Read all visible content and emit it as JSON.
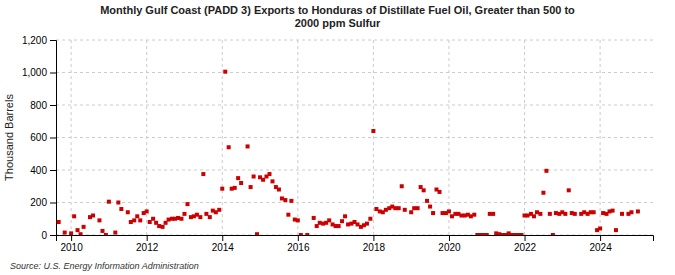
{
  "chart_data": {
    "type": "scatter",
    "title": "Monthly Gulf Coast (PADD 3) Exports to Honduras of Distillate Fuel Oil, Greater than 500 to\n2000 ppm Sulfur",
    "ylabel": "Thousand Barrels",
    "annotations": [
      "Source: U.S. Energy Information Administration"
    ],
    "color": "#cc0000",
    "marker": "square",
    "grid": true,
    "xlim": [
      2009.6,
      2025.4
    ],
    "xticks": [
      2010,
      2012,
      2014,
      2016,
      2018,
      2020,
      2022,
      2024
    ],
    "ylim": [
      0,
      1200
    ],
    "yticks": [
      0,
      200,
      400,
      600,
      800,
      {
        "value": 1000,
        "label": "1,000"
      },
      {
        "value": 1200,
        "label": "1,200"
      }
    ],
    "x": [
      2009.67,
      2009.83,
      2010.0,
      2010.08,
      2010.17,
      2010.25,
      2010.33,
      2010.5,
      2010.58,
      2010.75,
      2010.83,
      2010.92,
      2011.0,
      2011.17,
      2011.25,
      2011.33,
      2011.5,
      2011.58,
      2011.67,
      2011.75,
      2011.83,
      2011.92,
      2012.0,
      2012.08,
      2012.17,
      2012.25,
      2012.33,
      2012.42,
      2012.5,
      2012.58,
      2012.67,
      2012.75,
      2012.83,
      2012.92,
      2013.0,
      2013.08,
      2013.17,
      2013.25,
      2013.33,
      2013.42,
      2013.5,
      2013.58,
      2013.67,
      2013.75,
      2013.83,
      2013.92,
      2014.0,
      2014.08,
      2014.17,
      2014.25,
      2014.33,
      2014.42,
      2014.5,
      2014.67,
      2014.75,
      2014.83,
      2014.92,
      2015.0,
      2015.08,
      2015.17,
      2015.25,
      2015.33,
      2015.42,
      2015.5,
      2015.58,
      2015.67,
      2015.75,
      2015.83,
      2015.92,
      2016.0,
      2016.08,
      2016.25,
      2016.42,
      2016.5,
      2016.58,
      2016.67,
      2016.75,
      2016.83,
      2016.92,
      2017.0,
      2017.08,
      2017.17,
      2017.25,
      2017.33,
      2017.42,
      2017.5,
      2017.58,
      2017.67,
      2017.75,
      2017.83,
      2017.92,
      2018.0,
      2018.08,
      2018.17,
      2018.25,
      2018.33,
      2018.42,
      2018.5,
      2018.58,
      2018.67,
      2018.75,
      2018.83,
      2019.0,
      2019.08,
      2019.17,
      2019.25,
      2019.33,
      2019.42,
      2019.5,
      2019.58,
      2019.67,
      2019.75,
      2019.83,
      2019.92,
      2020.0,
      2020.08,
      2020.17,
      2020.25,
      2020.33,
      2020.42,
      2020.5,
      2020.58,
      2020.67,
      2020.75,
      2020.83,
      2020.92,
      2021.0,
      2021.08,
      2021.17,
      2021.25,
      2021.33,
      2021.42,
      2021.5,
      2021.58,
      2021.67,
      2021.75,
      2021.83,
      2021.92,
      2022.0,
      2022.08,
      2022.17,
      2022.25,
      2022.33,
      2022.42,
      2022.5,
      2022.58,
      2022.67,
      2022.75,
      2022.83,
      2022.92,
      2023.0,
      2023.08,
      2023.17,
      2023.25,
      2023.33,
      2023.5,
      2023.58,
      2023.67,
      2023.75,
      2023.83,
      2023.92,
      2024.0,
      2024.08,
      2024.17,
      2024.25,
      2024.33,
      2024.42,
      2024.58,
      2024.75,
      2024.83,
      2025.0
    ],
    "values": [
      80,
      15,
      10,
      115,
      30,
      5,
      50,
      110,
      120,
      90,
      25,
      0,
      205,
      15,
      200,
      160,
      140,
      80,
      90,
      115,
      90,
      135,
      145,
      80,
      100,
      75,
      55,
      50,
      75,
      95,
      100,
      100,
      105,
      100,
      130,
      190,
      110,
      115,
      125,
      110,
      375,
      130,
      110,
      150,
      140,
      155,
      285,
      1005,
      540,
      285,
      290,
      350,
      320,
      545,
      295,
      360,
      5,
      355,
      340,
      360,
      375,
      330,
      295,
      280,
      225,
      215,
      125,
      210,
      95,
      90,
      0,
      0,
      105,
      55,
      75,
      70,
      75,
      90,
      65,
      55,
      55,
      85,
      115,
      65,
      70,
      80,
      65,
      50,
      60,
      70,
      100,
      640,
      160,
      145,
      140,
      155,
      165,
      175,
      165,
      165,
      300,
      155,
      140,
      165,
      165,
      295,
      275,
      210,
      175,
      135,
      280,
      265,
      135,
      135,
      145,
      115,
      130,
      130,
      120,
      120,
      125,
      115,
      125,
      0,
      0,
      0,
      0,
      130,
      130,
      10,
      5,
      0,
      0,
      10,
      0,
      0,
      0,
      0,
      120,
      120,
      130,
      115,
      140,
      130,
      260,
      395,
      130,
      0,
      135,
      130,
      140,
      130,
      275,
      135,
      130,
      130,
      140,
      130,
      140,
      140,
      30,
      40,
      135,
      130,
      145,
      150,
      30,
      130,
      130,
      140,
      145
    ]
  }
}
